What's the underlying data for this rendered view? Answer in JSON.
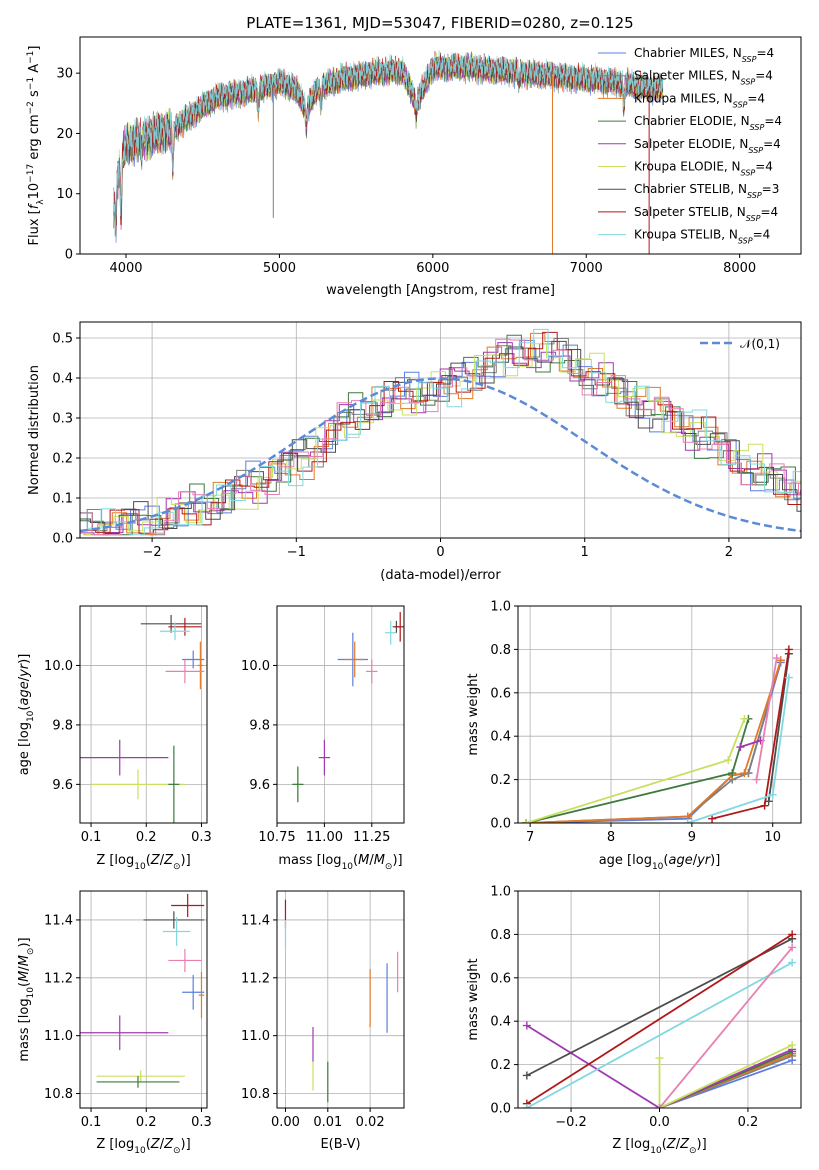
{
  "title": "PLATE=1361, MJD=53047, FIBERID=0280, z=0.125",
  "colors": {
    "chabrier_miles": "#5b7fe0",
    "salpeter_miles": "#7f7f7f",
    "kroupa_miles": "#e07a28",
    "chabrier_elodie": "#3d7a3d",
    "salpeter_elodie": "#a03ab0",
    "kroupa_elodie": "#c8e060",
    "chabrier_stelib": "#4d4d4d",
    "salpeter_stelib": "#b01818",
    "kroupa_stelib": "#80d8e0",
    "pink": "#e87fb0",
    "normal_curve": "#5b8ad6"
  },
  "legend": [
    {
      "label": "Chabrier MILES, N_SSP=4",
      "base": "Chabrier MILES, N",
      "sub": "SSP",
      "tail": "=4",
      "color": "#5b7fe0"
    },
    {
      "label": "Salpeter MILES, N_SSP=4",
      "base": "Salpeter MILES, N",
      "sub": "SSP",
      "tail": "=4",
      "color": "#7f7f7f"
    },
    {
      "label": "Kroupa MILES, N_SSP=4",
      "base": "Kroupa MILES, N",
      "sub": "SSP",
      "tail": "=4",
      "color": "#e07a28"
    },
    {
      "label": "Chabrier ELODIE, N_SSP=4",
      "base": "Chabrier ELODIE, N",
      "sub": "SSP",
      "tail": "=4",
      "color": "#3d7a3d"
    },
    {
      "label": "Salpeter ELODIE, N_SSP=4",
      "base": "Salpeter ELODIE, N",
      "sub": "SSP",
      "tail": "=4",
      "color": "#a03ab0"
    },
    {
      "label": "Kroupa ELODIE, N_SSP=4",
      "base": "Kroupa ELODIE, N",
      "sub": "SSP",
      "tail": "=4",
      "color": "#c8e060"
    },
    {
      "label": "Chabrier STELIB, N_SSP=3",
      "base": "Chabrier STELIB, N",
      "sub": "SSP",
      "tail": "=3",
      "color": "#4d4d4d"
    },
    {
      "label": "Salpeter STELIB, N_SSP=4",
      "base": "Salpeter STELIB, N",
      "sub": "SSP",
      "tail": "=4",
      "color": "#b01818"
    },
    {
      "label": "Kroupa STELIB, N_SSP=4",
      "base": "Kroupa STELIB, N",
      "sub": "SSP",
      "tail": "=4",
      "color": "#80d8e0"
    }
  ],
  "chart_data": [
    {
      "id": "spectrum",
      "type": "line",
      "xlabel": "wavelength [Angstrom, rest frame]",
      "ylabel": "Flux [f_λ 10^-17 erg cm^-2 s^-1 A^-1]",
      "xlim": [
        3700,
        8400
      ],
      "ylim": [
        0,
        36
      ],
      "xticks": [
        4000,
        5000,
        6000,
        7000,
        8000
      ],
      "yticks": [
        0,
        10,
        20,
        30
      ],
      "grid": false,
      "legend_position": "top-right",
      "continuum": [
        [
          3920,
          8
        ],
        [
          3960,
          15
        ],
        [
          4000,
          18
        ],
        [
          4100,
          19
        ],
        [
          4200,
          20
        ],
        [
          4300,
          20.5
        ],
        [
          4400,
          22.5
        ],
        [
          4500,
          24.5
        ],
        [
          4600,
          26
        ],
        [
          4700,
          26.5
        ],
        [
          4800,
          27
        ],
        [
          4900,
          27.5
        ],
        [
          5000,
          28.5
        ],
        [
          5100,
          27.5
        ],
        [
          5175,
          24
        ],
        [
          5250,
          27.5
        ],
        [
          5400,
          29
        ],
        [
          5600,
          30
        ],
        [
          5800,
          30.5
        ],
        [
          5893,
          25
        ],
        [
          6000,
          31
        ],
        [
          6200,
          31
        ],
        [
          6400,
          30.5
        ],
        [
          6600,
          30
        ],
        [
          6800,
          29.5
        ],
        [
          7000,
          29
        ],
        [
          7200,
          28.5
        ],
        [
          7400,
          27.5
        ],
        [
          7500,
          27.5
        ]
      ],
      "absorption_features": [
        [
          3933,
          5
        ],
        [
          3968,
          6
        ],
        [
          4101,
          17
        ],
        [
          4305,
          14
        ],
        [
          4861,
          24
        ],
        [
          5175,
          21
        ],
        [
          5270,
          25
        ],
        [
          5893,
          23
        ],
        [
          6563,
          28.5
        ],
        [
          7245,
          24
        ]
      ],
      "spikes": [
        {
          "x": 4960,
          "y": 6,
          "series": "Salpeter MILES"
        },
        {
          "x": 6780,
          "y": 0,
          "series": "Kroupa MILES"
        },
        {
          "x": 7410,
          "y": 0,
          "series": "Salpeter STELIB"
        }
      ]
    },
    {
      "id": "residuals",
      "type": "histogram",
      "xlabel": "(data-model)/error",
      "ylabel": "Normed distribution",
      "xlim": [
        -2.5,
        2.5
      ],
      "ylim": [
        0,
        0.54
      ],
      "xticks": [
        -2,
        -1,
        0,
        1,
        2
      ],
      "yticks": [
        0.0,
        0.1,
        0.2,
        0.3,
        0.4,
        0.5
      ],
      "grid": true,
      "legend_position": "top-right",
      "curve_label": "𝒩(0,1)",
      "curve": {
        "mean": 0,
        "sigma": 1
      },
      "bin_width": 0.1,
      "profile_values": [
        0.02,
        0.025,
        0.03,
        0.035,
        0.04,
        0.05,
        0.06,
        0.07,
        0.08,
        0.09,
        0.1,
        0.12,
        0.14,
        0.16,
        0.18,
        0.2,
        0.23,
        0.26,
        0.29,
        0.31,
        0.33,
        0.34,
        0.35,
        0.36,
        0.37,
        0.38,
        0.4,
        0.42,
        0.44,
        0.45,
        0.46,
        0.47,
        0.46,
        0.45,
        0.43,
        0.41,
        0.39,
        0.37,
        0.35,
        0.33,
        0.31,
        0.29,
        0.27,
        0.25,
        0.22,
        0.2,
        0.18,
        0.16,
        0.14,
        0.13,
        0.12,
        0.11,
        0.09,
        0.08,
        0.07,
        0.06,
        0.05,
        0.04,
        0.035,
        0.03,
        0.02,
        0.02
      ]
    },
    {
      "id": "age_vs_Z",
      "type": "errorbar",
      "xlabel": "Z [log10(Z/Z⊙)]",
      "ylabel": "age [log10(age/yr)]",
      "xlim": [
        0.08,
        0.31
      ],
      "ylim": [
        9.47,
        10.2
      ],
      "xticks": [
        0.1,
        0.2,
        0.3
      ],
      "yticks": [
        9.6,
        9.8,
        10.0
      ],
      "grid": true,
      "points": [
        {
          "series": "Chabrier STELIB",
          "x": 0.245,
          "xerr": 0.055,
          "y": 10.14,
          "yerr": 0.03
        },
        {
          "series": "Salpeter STELIB",
          "x": 0.27,
          "xerr": 0.03,
          "y": 10.13,
          "yerr": 0.03
        },
        {
          "series": "Kroupa STELIB",
          "x": 0.252,
          "xerr": 0.027,
          "y": 10.115,
          "yerr": 0.03
        },
        {
          "series": "Chabrier MILES",
          "x": 0.285,
          "xerr": 0.02,
          "y": 10.02,
          "yerr": 0.03
        },
        {
          "series": "Kroupa MILES",
          "x": 0.298,
          "xerr": 0.005,
          "y": 10.0,
          "yerr": 0.08
        },
        {
          "series": "Pink",
          "x": 0.27,
          "xerr": 0.035,
          "y": 9.98,
          "yerr": 0.04
        },
        {
          "series": "Salpeter ELODIE",
          "x": 0.152,
          "xerr": 0.088,
          "y": 9.69,
          "yerr": 0.06
        },
        {
          "series": "Kroupa ELODIE",
          "x": 0.185,
          "xerr": 0.085,
          "y": 9.6,
          "yerr": 0.05
        },
        {
          "series": "Chabrier ELODIE",
          "x": 0.25,
          "xerr": 0.01,
          "y": 9.6,
          "yerr": 0.13
        }
      ]
    },
    {
      "id": "age_vs_mass",
      "type": "errorbar",
      "xlabel": "mass [log10(M/M⊙)]",
      "xlim": [
        10.75,
        11.42
      ],
      "ylim": [
        9.47,
        10.2
      ],
      "xticks": [
        10.75,
        11.0,
        11.25
      ],
      "yticks": [
        9.6,
        9.8,
        10.0
      ],
      "grid": true,
      "points": [
        {
          "series": "Kroupa STELIB",
          "x": 11.35,
          "xerr": 0.03,
          "y": 10.11,
          "yerr": 0.04
        },
        {
          "series": "Chabrier STELIB",
          "x": 11.38,
          "xerr": 0.02,
          "y": 10.13,
          "yerr": 0.02
        },
        {
          "series": "Salpeter STELIB",
          "x": 11.4,
          "xerr": 0.03,
          "y": 10.13,
          "yerr": 0.05
        },
        {
          "series": "Chabrier MILES",
          "x": 11.15,
          "xerr": 0.08,
          "y": 10.02,
          "yerr": 0.09
        },
        {
          "series": "Kroupa MILES",
          "x": 11.16,
          "xerr": 0.05,
          "y": 10.02,
          "yerr": 0.06
        },
        {
          "series": "Pink",
          "x": 11.25,
          "xerr": 0.03,
          "y": 9.98,
          "yerr": 0.04
        },
        {
          "series": "Salpeter ELODIE",
          "x": 11.0,
          "xerr": 0.03,
          "y": 9.69,
          "yerr": 0.06
        },
        {
          "series": "Kroupa ELODIE",
          "x": 10.86,
          "xerr": 0.02,
          "y": 9.6,
          "yerr": 0.06
        },
        {
          "series": "Chabrier ELODIE",
          "x": 10.86,
          "xerr": 0.03,
          "y": 9.6,
          "yerr": 0.06
        }
      ]
    },
    {
      "id": "weight_vs_age",
      "type": "line",
      "xlabel": "age [log10(age/yr)]",
      "ylabel": "mass weight",
      "xlim": [
        6.85,
        10.35
      ],
      "ylim": [
        0,
        1
      ],
      "xticks": [
        7,
        8,
        9,
        10
      ],
      "yticks": [
        0.0,
        0.2,
        0.4,
        0.6,
        0.8,
        1.0
      ],
      "grid": true,
      "series": [
        {
          "series": "Chabrier MILES",
          "x": [
            6.95,
            8.95,
            9.5,
            9.7,
            10.1
          ],
          "y": [
            0.0,
            0.02,
            0.22,
            0.23,
            0.74
          ]
        },
        {
          "series": "Salpeter MILES",
          "x": [
            6.95,
            8.95,
            9.5,
            9.7,
            10.1
          ],
          "y": [
            0.0,
            0.03,
            0.2,
            0.23,
            0.75
          ]
        },
        {
          "series": "Kroupa MILES",
          "x": [
            6.95,
            8.95,
            9.5,
            9.65,
            10.1
          ],
          "y": [
            0.0,
            0.03,
            0.22,
            0.23,
            0.75
          ]
        },
        {
          "series": "Chabrier ELODIE",
          "x": [
            6.95,
            9.5,
            9.7
          ],
          "y": [
            0.0,
            0.23,
            0.48
          ]
        },
        {
          "series": "Salpeter ELODIE",
          "x": [
            9.6,
            9.85
          ],
          "y": [
            0.35,
            0.38
          ]
        },
        {
          "series": "Kroupa ELODIE",
          "x": [
            6.95,
            9.45,
            9.65
          ],
          "y": [
            0.0,
            0.29,
            0.48
          ]
        },
        {
          "series": "Chabrier STELIB",
          "x": [
            9.95,
            10.2
          ],
          "y": [
            0.1,
            0.78
          ]
        },
        {
          "series": "Salpeter STELIB",
          "x": [
            9.25,
            9.9,
            10.2
          ],
          "y": [
            0.02,
            0.08,
            0.8
          ]
        },
        {
          "series": "Kroupa STELIB",
          "x": [
            8.95,
            10.0,
            10.2
          ],
          "y": [
            0.0,
            0.13,
            0.67
          ]
        },
        {
          "series": "Pink",
          "x": [
            9.8,
            10.05
          ],
          "y": [
            0.2,
            0.76
          ]
        }
      ]
    },
    {
      "id": "mass_vs_Z",
      "type": "errorbar",
      "xlabel": "Z [log10(Z/Z⊙)]",
      "ylabel": "mass [log10(M/M⊙)]",
      "xlim": [
        0.08,
        0.31
      ],
      "ylim": [
        10.75,
        11.5
      ],
      "xticks": [
        0.1,
        0.2,
        0.3
      ],
      "yticks": [
        10.8,
        11.0,
        11.2,
        11.4
      ],
      "grid": true,
      "points": [
        {
          "series": "Salpeter STELIB",
          "x": 0.275,
          "xerr": 0.03,
          "y": 11.45,
          "yerr": 0.04
        },
        {
          "series": "Chabrier STELIB",
          "x": 0.25,
          "xerr": 0.055,
          "y": 11.4,
          "yerr": 0.03
        },
        {
          "series": "Kroupa STELIB",
          "x": 0.255,
          "xerr": 0.025,
          "y": 11.36,
          "yerr": 0.05
        },
        {
          "series": "Pink",
          "x": 0.27,
          "xerr": 0.03,
          "y": 11.26,
          "yerr": 0.04
        },
        {
          "series": "Chabrier MILES",
          "x": 0.285,
          "xerr": 0.02,
          "y": 11.15,
          "yerr": 0.06
        },
        {
          "series": "Kroupa MILES",
          "x": 0.3,
          "xerr": 0.005,
          "y": 11.14,
          "yerr": 0.08
        },
        {
          "series": "Salpeter ELODIE",
          "x": 0.152,
          "xerr": 0.088,
          "y": 11.01,
          "yerr": 0.06
        },
        {
          "series": "Kroupa ELODIE",
          "x": 0.19,
          "xerr": 0.08,
          "y": 10.86,
          "yerr": 0.02
        },
        {
          "series": "Chabrier ELODIE",
          "x": 0.185,
          "xerr": 0.075,
          "y": 10.84,
          "yerr": 0.02
        }
      ]
    },
    {
      "id": "mass_vs_ebv",
      "type": "errorbar",
      "xlabel": "E(B-V)",
      "xlim": [
        -0.002,
        0.028
      ],
      "ylim": [
        10.75,
        11.5
      ],
      "xticks": [
        0.0,
        0.01,
        0.02
      ],
      "yticks": [
        10.8,
        11.0,
        11.2,
        11.4
      ],
      "grid": true,
      "points": [
        {
          "series": "Salpeter STELIB",
          "x": 0.0,
          "xerr": 0,
          "y": 11.42,
          "yerr": 0.05
        },
        {
          "series": "Kroupa STELIB",
          "x": 0.0,
          "xerr": 0,
          "y": 11.35,
          "yerr": 0.05
        },
        {
          "series": "Pink",
          "x": 0.0265,
          "xerr": 0,
          "y": 11.22,
          "yerr": 0.07
        },
        {
          "series": "Chabrier MILES",
          "x": 0.024,
          "xerr": 0,
          "y": 11.13,
          "yerr": 0.12
        },
        {
          "series": "Kroupa MILES",
          "x": 0.02,
          "xerr": 0,
          "y": 11.13,
          "yerr": 0.1
        },
        {
          "series": "Salpeter ELODIE",
          "x": 0.0065,
          "xerr": 0,
          "y": 10.97,
          "yerr": 0.06
        },
        {
          "series": "Kroupa ELODIE",
          "x": 0.0065,
          "xerr": 0,
          "y": 10.86,
          "yerr": 0.05
        },
        {
          "series": "Chabrier ELODIE",
          "x": 0.01,
          "xerr": 0,
          "y": 10.84,
          "yerr": 0.07
        }
      ]
    },
    {
      "id": "weight_vs_Z",
      "type": "line",
      "xlabel": "Z [log10(Z/Z⊙)]",
      "ylabel": "mass weight",
      "xlim": [
        -0.32,
        0.32
      ],
      "ylim": [
        0,
        1
      ],
      "xticks": [
        -0.2,
        0.0,
        0.2
      ],
      "yticks": [
        0.0,
        0.2,
        0.4,
        0.6,
        0.8,
        1.0
      ],
      "grid": true,
      "series": [
        {
          "series": "Chabrier MILES",
          "x": [
            0.0,
            0.3
          ],
          "y": [
            0.0,
            0.22
          ]
        },
        {
          "series": "Salpeter MILES",
          "x": [
            0.0,
            0.3
          ],
          "y": [
            0.0,
            0.24
          ]
        },
        {
          "series": "Kroupa MILES",
          "x": [
            0.0,
            0.3
          ],
          "y": [
            0.0,
            0.25
          ]
        },
        {
          "series": "Chabrier ELODIE",
          "x": [
            0.0,
            0.3
          ],
          "y": [
            0.0,
            0.26
          ]
        },
        {
          "series": "Salpeter ELODIE",
          "x": [
            -0.3,
            0.0,
            0.3
          ],
          "y": [
            0.38,
            0.0,
            0.27
          ]
        },
        {
          "series": "Kroupa ELODIE",
          "x": [
            0.0,
            0.0,
            0.3
          ],
          "y": [
            0.23,
            0.0,
            0.29
          ]
        },
        {
          "series": "Chabrier STELIB",
          "x": [
            -0.3,
            0.3
          ],
          "y": [
            0.15,
            0.78
          ]
        },
        {
          "series": "Salpeter STELIB",
          "x": [
            -0.3,
            0.3
          ],
          "y": [
            0.02,
            0.8
          ]
        },
        {
          "series": "Kroupa STELIB",
          "x": [
            -0.3,
            0.3
          ],
          "y": [
            0.0,
            0.67
          ]
        },
        {
          "series": "Pink",
          "x": [
            0.0,
            0.3
          ],
          "y": [
            0.0,
            0.74
          ]
        }
      ]
    }
  ]
}
